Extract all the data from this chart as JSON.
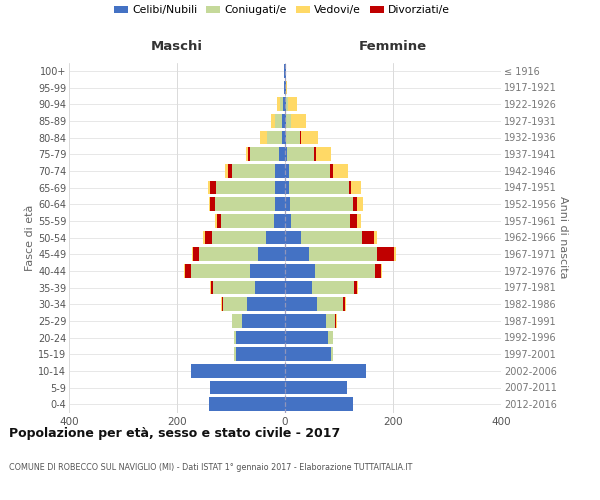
{
  "age_groups": [
    "0-4",
    "5-9",
    "10-14",
    "15-19",
    "20-24",
    "25-29",
    "30-34",
    "35-39",
    "40-44",
    "45-49",
    "50-54",
    "55-59",
    "60-64",
    "65-69",
    "70-74",
    "75-79",
    "80-84",
    "85-89",
    "90-94",
    "95-99",
    "100+"
  ],
  "birth_years": [
    "2012-2016",
    "2007-2011",
    "2002-2006",
    "1997-2001",
    "1992-1996",
    "1987-1991",
    "1982-1986",
    "1977-1981",
    "1972-1976",
    "1967-1971",
    "1962-1966",
    "1957-1961",
    "1952-1956",
    "1947-1951",
    "1942-1946",
    "1937-1941",
    "1932-1936",
    "1927-1931",
    "1922-1926",
    "1917-1921",
    "≤ 1916"
  ],
  "maschi_celibi": [
    140,
    138,
    175,
    90,
    90,
    80,
    70,
    55,
    65,
    50,
    35,
    20,
    18,
    18,
    18,
    12,
    5,
    5,
    4,
    1,
    1
  ],
  "maschi_coniugati": [
    0,
    0,
    0,
    4,
    5,
    18,
    45,
    78,
    110,
    110,
    100,
    98,
    112,
    110,
    80,
    52,
    28,
    14,
    6,
    0,
    0
  ],
  "maschi_vedovi": [
    0,
    0,
    0,
    0,
    0,
    1,
    1,
    2,
    2,
    2,
    3,
    3,
    3,
    4,
    6,
    4,
    14,
    7,
    4,
    0,
    0
  ],
  "maschi_divorziati": [
    0,
    0,
    0,
    0,
    0,
    0,
    2,
    4,
    10,
    10,
    14,
    8,
    8,
    10,
    8,
    5,
    0,
    0,
    0,
    0,
    0
  ],
  "femmine_nubili": [
    125,
    115,
    150,
    85,
    80,
    75,
    60,
    50,
    55,
    45,
    30,
    12,
    10,
    8,
    8,
    4,
    2,
    2,
    2,
    1,
    1
  ],
  "femmine_coniugate": [
    0,
    0,
    0,
    4,
    8,
    18,
    48,
    78,
    112,
    125,
    112,
    108,
    115,
    110,
    75,
    50,
    25,
    10,
    4,
    0,
    0
  ],
  "femmine_vedove": [
    0,
    0,
    0,
    0,
    0,
    1,
    1,
    2,
    2,
    4,
    6,
    6,
    12,
    18,
    28,
    28,
    32,
    26,
    16,
    2,
    1
  ],
  "femmine_divorziate": [
    0,
    0,
    0,
    0,
    0,
    2,
    4,
    6,
    10,
    32,
    22,
    14,
    8,
    4,
    6,
    4,
    2,
    0,
    0,
    0,
    0
  ],
  "colors": {
    "celibi_nubili": "#4472C4",
    "coniugati": "#C5D99A",
    "vedovi": "#FFD966",
    "divorziati": "#C00000"
  },
  "title": "Popolazione per età, sesso e stato civile - 2017",
  "subtitle": "COMUNE DI ROBECCO SUL NAVIGLIO (MI) - Dati ISTAT 1° gennaio 2017 - Elaborazione TUTTAITALIA.IT",
  "label_maschi": "Maschi",
  "label_femmine": "Femmine",
  "ylabel_left": "Fasce di età",
  "ylabel_right": "Anni di nascita",
  "xlim": 400
}
